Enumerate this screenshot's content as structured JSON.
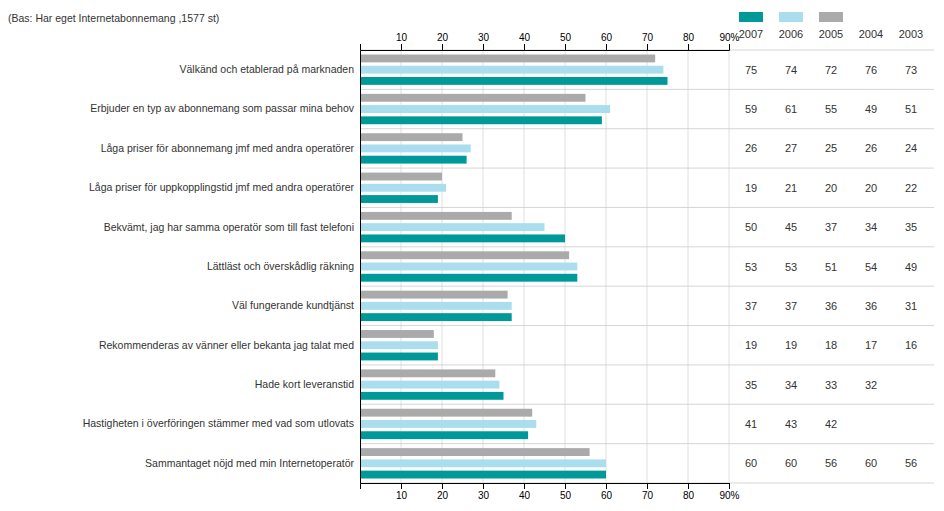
{
  "chart_data": {
    "type": "bar",
    "orientation": "horizontal",
    "subtitle": "(Bas: Har eget Internetabonnemang ,1577 st)",
    "categories": [
      "Välkänd och etablerad på marknaden",
      "Erbjuder en typ av abonnemang som passar mina behov",
      "Låga priser för abonnemang jmf med andra operatörer",
      "Låga priser för uppkopplingstid jmf med andra operatörer",
      "Bekvämt, jag har samma operatör som till fast telefoni",
      "Lättläst och överskådlig räkning",
      "Väl fungerande kundtjänst",
      "Rekommenderas av vänner eller bekanta jag talat med",
      "Hade kort leveranstid",
      "Hastigheten i överföringen stämmer med vad som utlovats",
      "Sammantaget nöjd med min Internetoperatör"
    ],
    "series": [
      {
        "name": "2007",
        "color": "#009999",
        "values": [
          75,
          59,
          26,
          19,
          50,
          53,
          37,
          19,
          35,
          41,
          60
        ]
      },
      {
        "name": "2006",
        "color": "#aaddee",
        "values": [
          74,
          61,
          27,
          21,
          45,
          53,
          37,
          19,
          34,
          43,
          60
        ]
      },
      {
        "name": "2005",
        "color": "#aaaaaa",
        "values": [
          72,
          55,
          25,
          20,
          37,
          51,
          36,
          18,
          33,
          42,
          56
        ]
      },
      {
        "name": "2004",
        "type": "table",
        "values": [
          76,
          49,
          26,
          20,
          34,
          54,
          36,
          17,
          32,
          null,
          60
        ]
      },
      {
        "name": "2003",
        "type": "table",
        "values": [
          73,
          51,
          24,
          22,
          35,
          49,
          31,
          16,
          null,
          null,
          56
        ]
      }
    ],
    "xlim": [
      0,
      90
    ],
    "xticks": [
      10,
      20,
      30,
      40,
      50,
      60,
      70,
      80,
      {
        "value": 90,
        "label": "90%"
      }
    ],
    "grid": true
  }
}
